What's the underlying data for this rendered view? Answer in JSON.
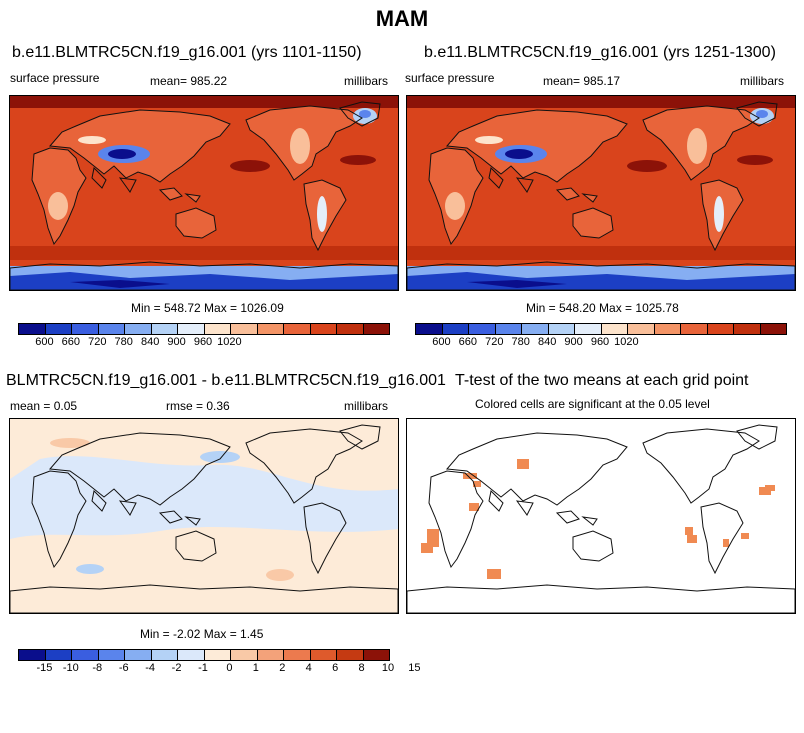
{
  "title": "MAM",
  "colors": {
    "abs_palette": [
      "#0a0e8c",
      "#1c3fc4",
      "#3a5ee0",
      "#5a84ec",
      "#86aef2",
      "#b4d2f6",
      "#e4eefa",
      "#fde4cc",
      "#f9bf9a",
      "#f39466",
      "#e8643a",
      "#d9441c",
      "#c0300e",
      "#8c1208"
    ],
    "diff_palette": [
      "#0a0e8c",
      "#1c3fc4",
      "#3a5ee0",
      "#5a84ec",
      "#86aef2",
      "#b4d2f6",
      "#dbe8fa",
      "#fdebd8",
      "#f9c9a7",
      "#f3a27a",
      "#ec7a4e",
      "#de5a2c",
      "#c53a12",
      "#8c1208"
    ],
    "ttest_fill": "#f08a52",
    "coast": "#111111"
  },
  "panels": {
    "p1": {
      "title": "b.e11.BLMTRC5CN.f19_g16.001 (yrs 1101-1150)",
      "var": "surface pressure",
      "mean": "mean= 985.22",
      "units": "millibars",
      "minmax": "Min = 548.72 Max = 1026.09"
    },
    "p2": {
      "title": "b.e11.BLMTRC5CN.f19_g16.001 (yrs 1251-1300)",
      "var": "surface pressure",
      "mean": "mean= 985.17",
      "units": "millibars",
      "minmax": "Min = 548.20 Max = 1025.78"
    },
    "p3": {
      "title": "BLMTRC5CN.f19_g16.001 - b.e11.BLMTRC5CN.f19_g16.001",
      "mean": "mean =   0.05",
      "rmse": "rmse =   0.36",
      "units": "millibars",
      "minmax": "Min = -2.02 Max =   1.45"
    },
    "p4": {
      "title": "T-test of the two means at each grid point",
      "subtitle": "Colored cells are significant at the 0.05 level"
    }
  },
  "chart_data": [
    {
      "type": "heatmap",
      "title": "b.e11.BLMTRC5CN.f19_g16.001 (yrs 1101-1150)",
      "variable": "surface pressure",
      "units": "millibars",
      "mean": 985.22,
      "min": 548.72,
      "max": 1026.09,
      "colorbar_ticks": [
        600,
        660,
        720,
        780,
        840,
        900,
        960,
        1020
      ]
    },
    {
      "type": "heatmap",
      "title": "b.e11.BLMTRC5CN.f19_g16.001 (yrs 1251-1300)",
      "variable": "surface pressure",
      "units": "millibars",
      "mean": 985.17,
      "min": 548.2,
      "max": 1025.78,
      "colorbar_ticks": [
        600,
        660,
        720,
        780,
        840,
        900,
        960,
        1020
      ]
    },
    {
      "type": "heatmap",
      "title": "BLMTRC5CN.f19_g16.001 - b.e11.BLMTRC5CN.f19_g16.001",
      "units": "millibars",
      "mean": 0.05,
      "rmse": 0.36,
      "min": -2.02,
      "max": 1.45,
      "colorbar_ticks": [
        -15,
        -10,
        -8,
        -6,
        -4,
        -2,
        -1,
        0,
        1,
        2,
        4,
        6,
        8,
        10,
        15
      ]
    },
    {
      "type": "heatmap",
      "title": "T-test of the two means at each grid point",
      "subtitle": "Colored cells are significant at the 0.05 level"
    }
  ]
}
